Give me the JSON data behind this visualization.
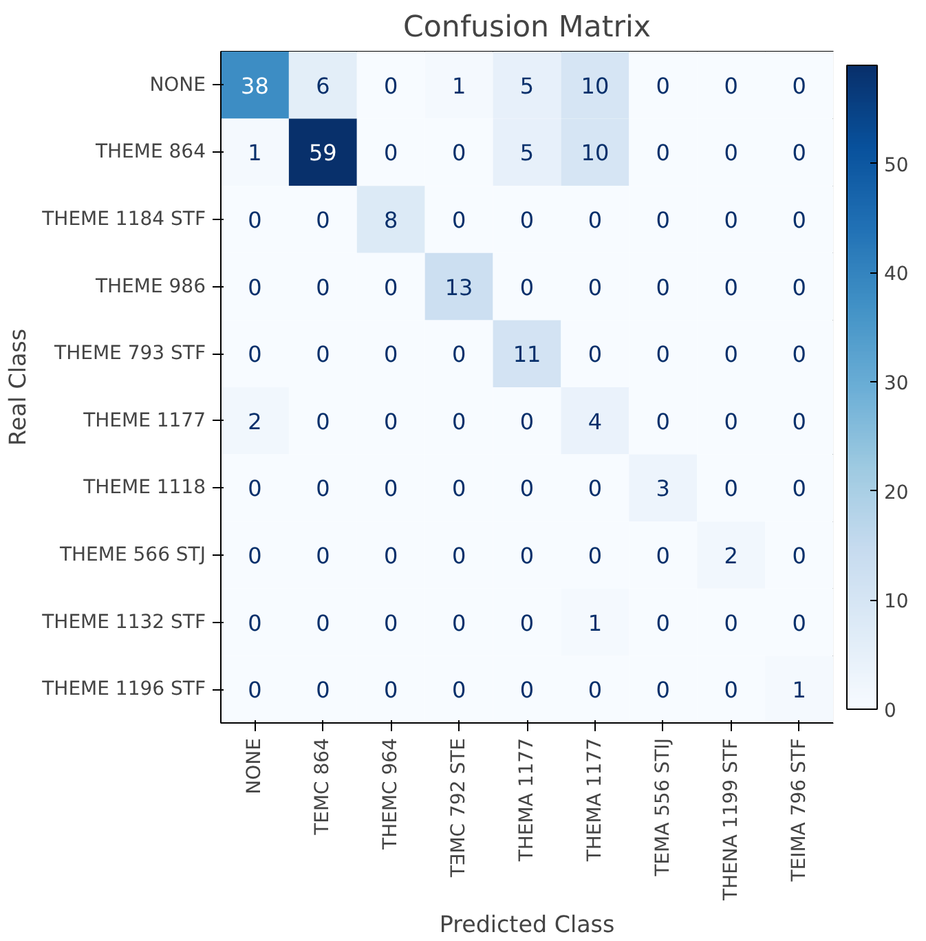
{
  "chart_data": {
    "type": "heatmap",
    "title": "Confusion Matrix",
    "xlabel": "Predicted Class",
    "ylabel": "Real Class",
    "categories": [
      "NONE",
      "TEMC 864",
      "THEMC 964",
      "TƎMC 792 STE",
      "THEMA 1177",
      "THEMA 1177",
      "TEMA 556 STIJ",
      "THENA 1199 STF",
      "TEIMA 796 STF"
    ],
    "y_categories": [
      "NONE",
      "THEME 864",
      "THEME 1184 STF",
      "THEME 986",
      "THEME 793 STF",
      "THEME 1177",
      "THEME 1118",
      "THEME 566 STJ",
      "THEME 1132 STF",
      "THEME 1196 STF"
    ],
    "cells": [
      [
        38,
        6,
        0,
        1,
        5,
        10,
        0,
        0,
        0
      ],
      [
        1,
        59,
        0,
        0,
        5,
        10,
        0,
        0,
        0
      ],
      [
        0,
        0,
        8,
        0,
        0,
        0,
        0,
        0,
        0
      ],
      [
        0,
        0,
        0,
        13,
        0,
        0,
        0,
        0,
        0
      ],
      [
        0,
        0,
        0,
        0,
        11,
        0,
        0,
        0,
        0
      ],
      [
        2,
        0,
        0,
        0,
        0,
        4,
        0,
        0,
        0
      ],
      [
        0,
        0,
        0,
        0,
        0,
        0,
        3,
        0,
        0
      ],
      [
        0,
        0,
        0,
        0,
        0,
        0,
        0,
        2,
        0
      ],
      [
        0,
        0,
        0,
        0,
        0,
        1,
        0,
        0,
        0
      ],
      [
        0,
        0,
        0,
        0,
        0,
        0,
        0,
        0,
        1
      ]
    ],
    "clim": [
      0,
      59
    ],
    "cticks": [
      0,
      10,
      20,
      30,
      40,
      50
    ],
    "data_labels": true
  }
}
